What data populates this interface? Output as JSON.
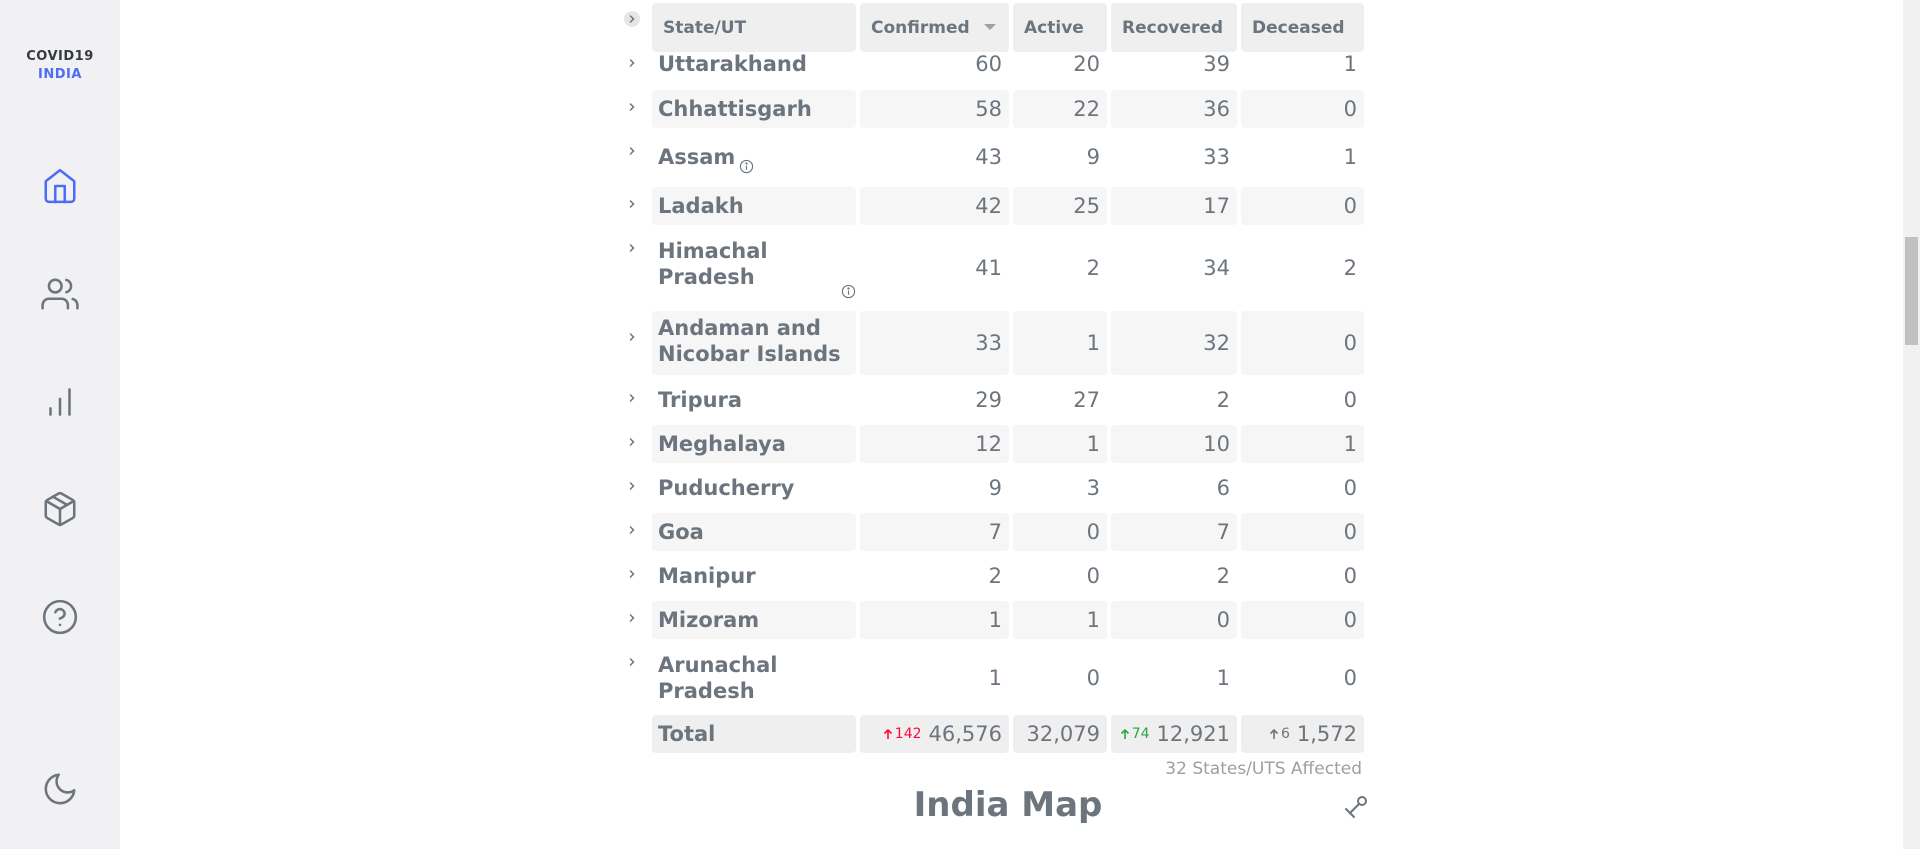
{
  "brand": {
    "line1": "COVID19",
    "line2": "INDIA"
  },
  "nav": [
    {
      "name": "home",
      "icon": "home-icon"
    },
    {
      "name": "people",
      "icon": "users-icon"
    },
    {
      "name": "charts",
      "icon": "bar-chart-icon"
    },
    {
      "name": "resources",
      "icon": "package-icon"
    },
    {
      "name": "faq",
      "icon": "help-circle-icon"
    },
    {
      "name": "theme",
      "icon": "moon-icon"
    }
  ],
  "colors": {
    "accent": "#4c6ef5",
    "confirmed_delta": "#ff073a",
    "recovered_delta": "#28a745"
  },
  "table": {
    "headers": {
      "state": "State/UT",
      "confirmed": "Confirmed",
      "active": "Active",
      "recovered": "Recovered",
      "deceased": "Deceased"
    },
    "sort_column": "Confirmed",
    "rows": [
      {
        "name": "Uttarakhand",
        "confirmed": "60",
        "active": "20",
        "recovered": "39",
        "deceased": "1",
        "info": false
      },
      {
        "name": "Chhattisgarh",
        "confirmed": "58",
        "active": "22",
        "recovered": "36",
        "deceased": "0",
        "info": false
      },
      {
        "name": "Assam",
        "confirmed": "43",
        "active": "9",
        "recovered": "33",
        "deceased": "1",
        "info": true
      },
      {
        "name": "Ladakh",
        "confirmed": "42",
        "active": "25",
        "recovered": "17",
        "deceased": "0",
        "info": false
      },
      {
        "name": "Himachal Pradesh",
        "confirmed": "41",
        "active": "2",
        "recovered": "34",
        "deceased": "2",
        "info": true
      },
      {
        "name": "Andaman and Nicobar Islands",
        "confirmed": "33",
        "active": "1",
        "recovered": "32",
        "deceased": "0",
        "info": false
      },
      {
        "name": "Tripura",
        "confirmed": "29",
        "active": "27",
        "recovered": "2",
        "deceased": "0",
        "info": false
      },
      {
        "name": "Meghalaya",
        "confirmed": "12",
        "active": "1",
        "recovered": "10",
        "deceased": "1",
        "info": false
      },
      {
        "name": "Puducherry",
        "confirmed": "9",
        "active": "3",
        "recovered": "6",
        "deceased": "0",
        "info": false
      },
      {
        "name": "Goa",
        "confirmed": "7",
        "active": "0",
        "recovered": "7",
        "deceased": "0",
        "info": false
      },
      {
        "name": "Manipur",
        "confirmed": "2",
        "active": "0",
        "recovered": "2",
        "deceased": "0",
        "info": false
      },
      {
        "name": "Mizoram",
        "confirmed": "1",
        "active": "1",
        "recovered": "0",
        "deceased": "0",
        "info": false
      },
      {
        "name": "Arunachal Pradesh",
        "confirmed": "1",
        "active": "0",
        "recovered": "1",
        "deceased": "0",
        "info": false
      }
    ],
    "total": {
      "label": "Total",
      "confirmed": "46,576",
      "confirmed_delta": "142",
      "active": "32,079",
      "recovered": "12,921",
      "recovered_delta": "74",
      "deceased": "1,572",
      "deceased_delta": "6"
    },
    "affected_note": "32 States/UTS Affected"
  },
  "map": {
    "title": "India Map",
    "tool_icon": "map-tool-icon"
  }
}
